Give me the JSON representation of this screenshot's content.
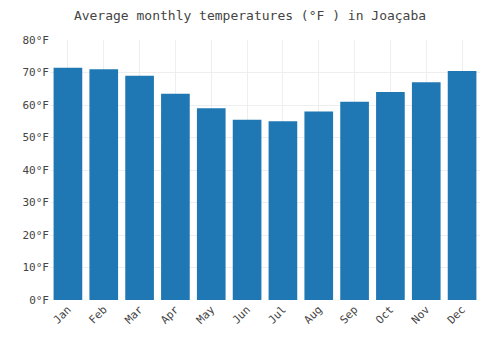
{
  "chart_data": {
    "type": "bar",
    "title": "Average monthly temperatures (°F ) in Joaçaba",
    "categories": [
      "Jan",
      "Feb",
      "Mar",
      "Apr",
      "May",
      "Jun",
      "Jul",
      "Aug",
      "Sep",
      "Oct",
      "Nov",
      "Dec"
    ],
    "values": [
      71.5,
      71.0,
      69.0,
      63.5,
      59.0,
      55.5,
      55.0,
      58.0,
      61.0,
      64.0,
      67.0,
      70.5
    ],
    "ylim": [
      0,
      80
    ],
    "yticks": [
      {
        "value": 0,
        "label": "0°F"
      },
      {
        "value": 10,
        "label": "10°F"
      },
      {
        "value": 20,
        "label": "20°F"
      },
      {
        "value": 30,
        "label": "30°F"
      },
      {
        "value": 40,
        "label": "40°F"
      },
      {
        "value": 50,
        "label": "50°F"
      },
      {
        "value": 60,
        "label": "60°F"
      },
      {
        "value": 70,
        "label": "70°F"
      },
      {
        "value": 80,
        "label": "80°F"
      }
    ],
    "grid": true
  }
}
